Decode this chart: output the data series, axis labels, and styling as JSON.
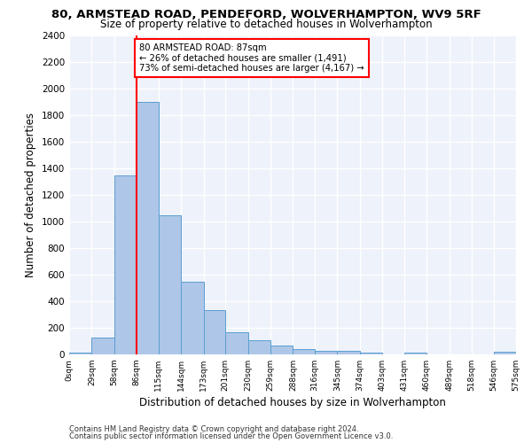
{
  "title_line1": "80, ARMSTEAD ROAD, PENDEFORD, WOLVERHAMPTON, WV9 5RF",
  "title_line2": "Size of property relative to detached houses in Wolverhampton",
  "xlabel": "Distribution of detached houses by size in Wolverhampton",
  "ylabel": "Number of detached properties",
  "footer_line1": "Contains HM Land Registry data © Crown copyright and database right 2024.",
  "footer_line2": "Contains public sector information licensed under the Open Government Licence v3.0.",
  "bin_edges": [
    0,
    29,
    58,
    86,
    115,
    144,
    173,
    201,
    230,
    259,
    288,
    316,
    345,
    374,
    403,
    431,
    460,
    489,
    518,
    546,
    575
  ],
  "bin_labels": [
    "0sqm",
    "29sqm",
    "58sqm",
    "86sqm",
    "115sqm",
    "144sqm",
    "173sqm",
    "201sqm",
    "230sqm",
    "259sqm",
    "288sqm",
    "316sqm",
    "345sqm",
    "374sqm",
    "403sqm",
    "431sqm",
    "460sqm",
    "489sqm",
    "518sqm",
    "546sqm",
    "575sqm"
  ],
  "bar_heights": [
    15,
    125,
    1350,
    1900,
    1045,
    545,
    335,
    170,
    110,
    65,
    40,
    30,
    25,
    15,
    0,
    15,
    0,
    0,
    0,
    20
  ],
  "bar_color": "#aec6e8",
  "bar_edge_color": "#5a9fd4",
  "property_size": 87,
  "property_line_color": "red",
  "annotation_text": "80 ARMSTEAD ROAD: 87sqm\n← 26% of detached houses are smaller (1,491)\n73% of semi-detached houses are larger (4,167) →",
  "annotation_box_color": "white",
  "annotation_box_edge": "red",
  "ylim": [
    0,
    2400
  ],
  "yticks": [
    0,
    200,
    400,
    600,
    800,
    1000,
    1200,
    1400,
    1600,
    1800,
    2000,
    2200,
    2400
  ],
  "bg_color": "#eef2fa",
  "grid_color": "white",
  "title_fontsize": 9.5,
  "subtitle_fontsize": 8.5,
  "axis_label_fontsize": 8.5,
  "footer_fontsize": 6.0
}
